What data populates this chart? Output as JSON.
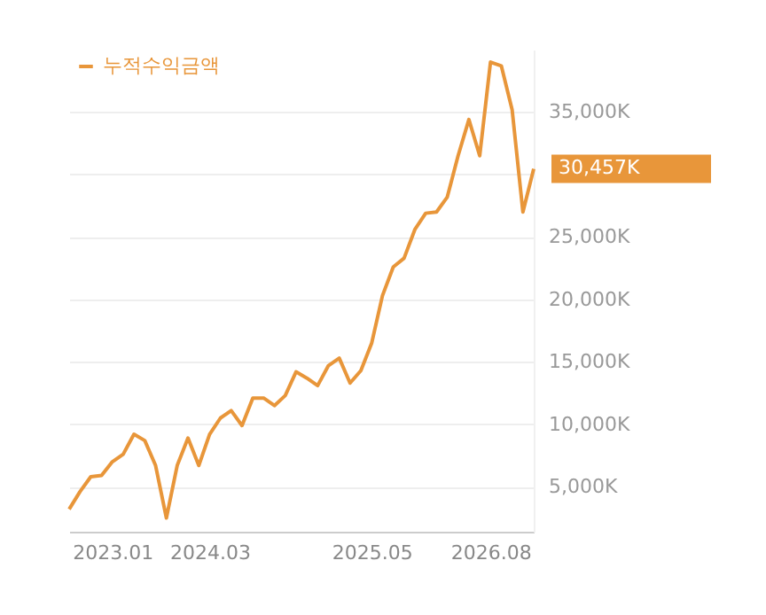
{
  "chart_data": {
    "type": "line",
    "categories": [
      null,
      null,
      null,
      null,
      "2023.01",
      null,
      null,
      null,
      null,
      null,
      null,
      null,
      null,
      "2024.03",
      null,
      null,
      null,
      null,
      null,
      null,
      null,
      null,
      null,
      null,
      null,
      null,
      null,
      null,
      "2025.05",
      null,
      null,
      null,
      null,
      null,
      null,
      null,
      null,
      null,
      null,
      "2026.08",
      null,
      null,
      null,
      null
    ],
    "series": [
      {
        "name": "누적수익금액",
        "color": "#e8963a",
        "values": [
          3200,
          4600,
          5800,
          5900,
          7000,
          7600,
          9200,
          8700,
          6700,
          2500,
          6700,
          8900,
          6700,
          9200,
          10500,
          11100,
          9900,
          12100,
          12100,
          11500,
          12300,
          14200,
          13700,
          13100,
          14700,
          15300,
          13300,
          14300,
          16500,
          20300,
          22600,
          23300,
          25600,
          26900,
          27000,
          28200,
          31500,
          34400,
          31500,
          39000,
          38700,
          35200,
          27000,
          30457
        ]
      }
    ],
    "ylim": [
      1400,
      40000
    ],
    "yticks": [
      {
        "value": 5000,
        "label": "5,000K"
      },
      {
        "value": 10000,
        "label": "10,000K"
      },
      {
        "value": 15000,
        "label": "15,000K"
      },
      {
        "value": 20000,
        "label": "20,000K"
      },
      {
        "value": 25000,
        "label": "25,000K"
      },
      {
        "value": 30000,
        "label": null
      },
      {
        "value": 35000,
        "label": "35,000K"
      }
    ],
    "annotations": [
      "30,457K"
    ],
    "grid": "y",
    "legend": "top left",
    "marker": "none",
    "line_style": "solid"
  }
}
